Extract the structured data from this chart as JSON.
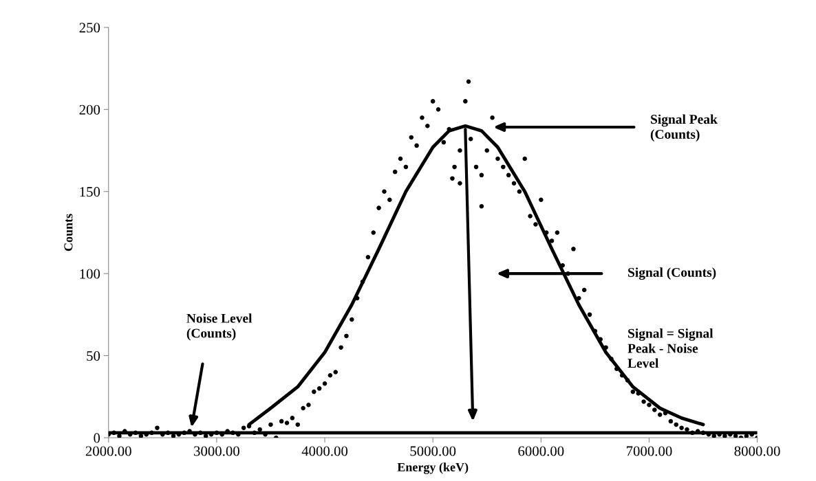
{
  "chart_data": {
    "type": "scatter",
    "xlabel": "Energy (keV)",
    "ylabel": "Counts",
    "xlim": [
      2000,
      8000
    ],
    "xticks": [
      {
        "value": 2000,
        "label": "2000.00"
      },
      {
        "value": 3000,
        "label": "3000.00"
      },
      {
        "value": 4000,
        "label": "4000.00"
      },
      {
        "value": 5000,
        "label": "5000.00"
      },
      {
        "value": 6000,
        "label": "6000.00"
      },
      {
        "value": 7000,
        "label": "7000.00"
      },
      {
        "value": 8000,
        "label": "8000.00"
      }
    ],
    "ylim": [
      0,
      250
    ],
    "yticks": [
      0,
      50,
      100,
      150,
      200,
      250
    ],
    "grid": false,
    "legend": false,
    "marker": "circle",
    "series": [
      {
        "color": "#000000",
        "x": [
          2000,
          2050,
          2100,
          2150,
          2200,
          2250,
          2300,
          2350,
          2400,
          2450,
          2500,
          2550,
          2600,
          2650,
          2700,
          2750,
          2800,
          2850,
          2900,
          2950,
          3000,
          3050,
          3100,
          3150,
          3200,
          3250,
          3300,
          3350,
          3400,
          3450,
          3500,
          3550,
          3600,
          3650,
          3700,
          3750,
          3800,
          3850,
          3900,
          3950,
          4000,
          4050,
          4100,
          4150,
          4200,
          4250,
          4300,
          4350,
          4400,
          4450,
          4500,
          4550,
          4600,
          4650,
          4700,
          4750,
          4800,
          4850,
          4900,
          4950,
          5000,
          5050,
          5100,
          5150,
          5180,
          5200,
          5250,
          5250,
          5300,
          5330,
          5350,
          5400,
          5450,
          5450,
          5500,
          5550,
          5600,
          5650,
          5700,
          5750,
          5800,
          5850,
          5900,
          5950,
          6000,
          6050,
          6100,
          6150,
          6200,
          6250,
          6300,
          6350,
          6400,
          6450,
          6500,
          6550,
          6600,
          6650,
          6700,
          6750,
          6800,
          6850,
          6900,
          6950,
          7000,
          7050,
          7100,
          7150,
          7200,
          7250,
          7300,
          7350,
          7400,
          7450,
          7500,
          7550,
          7600,
          7650,
          7700,
          7750,
          7800,
          7850,
          7900,
          7950,
          8000
        ],
        "values": [
          2,
          3,
          1,
          4,
          2,
          3,
          1,
          2,
          3,
          6,
          2,
          3,
          1,
          2,
          3,
          4,
          2,
          3,
          1,
          2,
          3,
          2,
          4,
          3,
          2,
          6,
          7,
          3,
          5,
          2,
          8,
          0,
          10,
          9,
          12,
          8,
          18,
          20,
          28,
          30,
          33,
          38,
          40,
          55,
          62,
          72,
          85,
          95,
          110,
          125,
          140,
          150,
          145,
          162,
          170,
          165,
          183,
          178,
          195,
          190,
          205,
          200,
          180,
          188,
          158,
          165,
          175,
          155,
          205,
          217,
          182,
          165,
          160,
          141,
          175,
          195,
          170,
          165,
          160,
          155,
          150,
          170,
          135,
          130,
          145,
          125,
          120,
          125,
          105,
          100,
          115,
          85,
          90,
          75,
          65,
          60,
          55,
          48,
          42,
          38,
          35,
          28,
          27,
          22,
          20,
          17,
          14,
          15,
          10,
          8,
          6,
          5,
          3,
          4,
          3,
          2,
          1,
          2,
          1,
          2,
          1,
          0,
          1,
          2,
          0
        ]
      },
      {
        "type": "line",
        "color": "#000000",
        "marker": "none",
        "line_style": "solid",
        "x": [
          3300,
          3500,
          3750,
          4000,
          4250,
          4500,
          4750,
          5000,
          5150,
          5300,
          5450,
          5600,
          5850,
          6100,
          6350,
          6600,
          6850,
          7100,
          7300,
          7500
        ],
        "values": [
          8,
          18,
          31,
          52,
          81,
          115,
          150,
          177,
          187,
          190,
          187,
          177,
          150,
          115,
          81,
          52,
          31,
          18,
          12,
          8
        ]
      }
    ],
    "ref_lines": [
      {
        "axis": "y",
        "value": 3,
        "color": "#000000",
        "line_style": "solid"
      }
    ],
    "annotations": [
      "Signal Peak\n(Counts)",
      "Signal (Counts)",
      "Noise Level\n(Counts)",
      "Signal = Signal\nPeak - Noise\nLevel"
    ]
  }
}
